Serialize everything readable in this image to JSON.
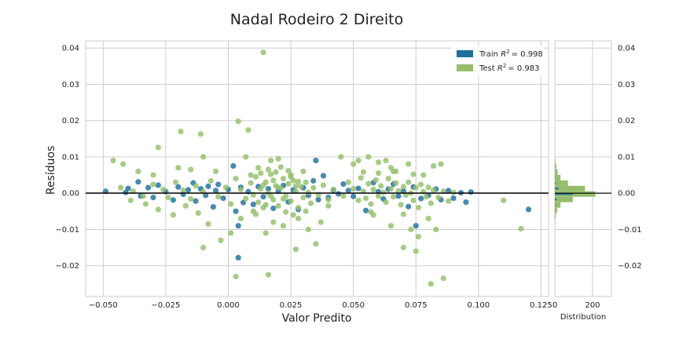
{
  "chart_data": {
    "type": "scatter",
    "title": "Nadal Rodeiro 2 Direito",
    "xlabel": "Valor Predito",
    "ylabel": "Resíduos",
    "xlim": [
      -0.057,
      0.128
    ],
    "ylim": [
      -0.0285,
      0.042
    ],
    "x_ticks": [
      -0.05,
      -0.025,
      0.0,
      0.025,
      0.05,
      0.075,
      0.1,
      0.125
    ],
    "x_tick_labels": [
      "−0.050",
      "−0.025",
      "0.000",
      "0.025",
      "0.050",
      "0.075",
      "0.100",
      "0.125"
    ],
    "y_ticks": [
      -0.02,
      -0.01,
      0.0,
      0.01,
      0.02,
      0.03,
      0.04
    ],
    "y_tick_labels": [
      "−0.02",
      "−0.01",
      "0.00",
      "0.01",
      "0.02",
      "0.03",
      "0.04"
    ],
    "grid": true,
    "legend_position": "top-right",
    "series": [
      {
        "name": "Train",
        "legend_prefix": "Train ",
        "legend_value": "= 0.998",
        "color": "#1f6f9c",
        "points": [
          [
            -0.049,
            0.0005
          ],
          [
            -0.041,
            0.0002
          ],
          [
            -0.04,
            0.0013
          ],
          [
            -0.036,
            0.0031
          ],
          [
            -0.035,
            -0.0008
          ],
          [
            -0.032,
            0.0015
          ],
          [
            -0.03,
            -0.0012
          ],
          [
            -0.028,
            0.0022
          ],
          [
            -0.025,
            0.0004
          ],
          [
            -0.022,
            -0.0019
          ],
          [
            -0.02,
            0.0017
          ],
          [
            -0.018,
            -0.0003
          ],
          [
            -0.016,
            0.0009
          ],
          [
            -0.014,
            0.0028
          ],
          [
            -0.013,
            -0.0022
          ],
          [
            -0.011,
            0.0012
          ],
          [
            -0.009,
            -0.0006
          ],
          [
            -0.008,
            0.0019
          ],
          [
            -0.006,
            -0.0038
          ],
          [
            -0.005,
            0.0007
          ],
          [
            -0.004,
            0.0024
          ],
          [
            -0.002,
            -0.0014
          ],
          [
            0.0,
            0.001
          ],
          [
            0.002,
            0.0075
          ],
          [
            0.003,
            -0.005
          ],
          [
            0.004,
            -0.009
          ],
          [
            0.005,
            0.0016
          ],
          [
            0.006,
            -0.0026
          ],
          [
            0.008,
            0.0004
          ],
          [
            0.01,
            -0.0031
          ],
          [
            0.012,
            0.0018
          ],
          [
            0.014,
            -0.001
          ],
          [
            0.016,
            0.0012
          ],
          [
            0.018,
            -0.0042
          ],
          [
            0.02,
            0.0006
          ],
          [
            0.022,
            0.0021
          ],
          [
            0.024,
            -0.0024
          ],
          [
            0.026,
            0.0009
          ],
          [
            0.028,
            -0.0045
          ],
          [
            0.03,
            0.0015
          ],
          [
            0.032,
            -0.0006
          ],
          [
            0.034,
            0.0034
          ],
          [
            0.035,
            0.009
          ],
          [
            0.036,
            -0.0018
          ],
          [
            0.038,
            0.0048
          ],
          [
            0.04,
            -0.0012
          ],
          [
            0.042,
            0.0008
          ],
          [
            0.044,
            -0.0002
          ],
          [
            0.046,
            0.0025
          ],
          [
            0.048,
            0.0007
          ],
          [
            0.05,
            -0.0009
          ],
          [
            0.052,
            0.0013
          ],
          [
            0.055,
            -0.0048
          ],
          [
            0.058,
            0.0029
          ],
          [
            0.06,
            0.0004
          ],
          [
            0.062,
            -0.0016
          ],
          [
            0.064,
            0.0011
          ],
          [
            0.066,
            0.0025
          ],
          [
            0.068,
            -0.0008
          ],
          [
            0.07,
            0.0006
          ],
          [
            0.072,
            -0.0037
          ],
          [
            0.074,
            0.0017
          ],
          [
            0.075,
            -0.009
          ],
          [
            0.077,
            -0.0015
          ],
          [
            0.08,
            -0.0006
          ],
          [
            0.083,
            0.0011
          ],
          [
            0.085,
            -0.0018
          ],
          [
            0.088,
            0.0007
          ],
          [
            0.09,
            -0.0014
          ],
          [
            0.093,
            0.0001
          ],
          [
            0.095,
            -0.0025
          ],
          [
            0.097,
            0.0003
          ],
          [
            0.12,
            -0.0045
          ],
          [
            0.004,
            -0.0178
          ]
        ]
      },
      {
        "name": "Test",
        "legend_prefix": "Test ",
        "legend_value": "= 0.983",
        "color": "#95be6c",
        "points": [
          [
            0.014,
            0.0388
          ],
          [
            0.004,
            0.0198
          ],
          [
            0.008,
            0.0174
          ],
          [
            -0.019,
            0.017
          ],
          [
            -0.011,
            0.0163
          ],
          [
            -0.028,
            0.0126
          ],
          [
            -0.046,
            0.009
          ],
          [
            -0.042,
            0.008
          ],
          [
            -0.036,
            0.006
          ],
          [
            -0.03,
            0.005
          ],
          [
            -0.02,
            0.007
          ],
          [
            -0.015,
            0.0065
          ],
          [
            -0.01,
            0.01
          ],
          [
            -0.005,
            0.006
          ],
          [
            0.007,
            0.01
          ],
          [
            0.012,
            0.007
          ],
          [
            0.017,
            0.009
          ],
          [
            0.02,
            0.0095
          ],
          [
            0.025,
            0.005
          ],
          [
            0.03,
            0.006
          ],
          [
            0.045,
            0.01
          ],
          [
            0.05,
            0.008
          ],
          [
            0.052,
            0.009
          ],
          [
            0.056,
            0.01
          ],
          [
            0.06,
            0.0085
          ],
          [
            0.063,
            0.009
          ],
          [
            0.065,
            0.007
          ],
          [
            0.067,
            0.006
          ],
          [
            0.072,
            0.008
          ],
          [
            0.082,
            0.0075
          ],
          [
            0.085,
            0.008
          ],
          [
            0.078,
            0.005
          ],
          [
            -0.039,
            -0.002
          ],
          [
            -0.033,
            -0.003
          ],
          [
            -0.028,
            -0.0045
          ],
          [
            -0.022,
            -0.006
          ],
          [
            -0.017,
            -0.0035
          ],
          [
            -0.012,
            -0.0055
          ],
          [
            -0.008,
            -0.0085
          ],
          [
            -0.01,
            -0.015
          ],
          [
            -0.003,
            -0.013
          ],
          [
            0.001,
            -0.011
          ],
          [
            0.003,
            -0.023
          ],
          [
            0.005,
            -0.007
          ],
          [
            0.01,
            -0.005
          ],
          [
            0.015,
            -0.011
          ],
          [
            0.016,
            -0.0225
          ],
          [
            0.018,
            -0.008
          ],
          [
            0.022,
            -0.009
          ],
          [
            0.027,
            -0.0155
          ],
          [
            0.028,
            -0.007
          ],
          [
            0.032,
            -0.01
          ],
          [
            0.035,
            -0.014
          ],
          [
            0.037,
            -0.008
          ],
          [
            0.04,
            -0.0035
          ],
          [
            0.058,
            -0.006
          ],
          [
            0.065,
            -0.009
          ],
          [
            0.07,
            -0.015
          ],
          [
            0.073,
            -0.01
          ],
          [
            0.076,
            -0.012
          ],
          [
            0.075,
            -0.016
          ],
          [
            0.08,
            -0.007
          ],
          [
            0.081,
            -0.025
          ],
          [
            0.086,
            -0.0235
          ],
          [
            0.083,
            -0.01
          ],
          [
            0.11,
            -0.002
          ],
          [
            0.117,
            -0.0098
          ],
          [
            -0.043,
            0.0015
          ],
          [
            -0.038,
            0.0005
          ],
          [
            -0.034,
            -0.0008
          ],
          [
            -0.03,
            0.0024
          ],
          [
            -0.026,
            0.001
          ],
          [
            -0.024,
            -0.0012
          ],
          [
            -0.021,
            0.003
          ],
          [
            -0.018,
            0.0008
          ],
          [
            -0.015,
            -0.0016
          ],
          [
            -0.013,
            0.002
          ],
          [
            -0.01,
            0.0004
          ],
          [
            -0.007,
            0.0034
          ],
          [
            -0.004,
            -0.001
          ],
          [
            -0.001,
            0.0016
          ],
          [
            0.001,
            -0.003
          ],
          [
            0.003,
            0.004
          ],
          [
            0.005,
            0.001
          ],
          [
            0.007,
            -0.0015
          ],
          [
            0.009,
            0.0028
          ],
          [
            0.01,
            -0.0005
          ],
          [
            0.011,
            0.0045
          ],
          [
            0.012,
            -0.0025
          ],
          [
            0.013,
            0.0012
          ],
          [
            0.014,
            -0.004
          ],
          [
            0.015,
            0.003
          ],
          [
            0.016,
            0.0
          ],
          [
            0.017,
            0.0052
          ],
          [
            0.018,
            -0.0018
          ],
          [
            0.019,
            0.002
          ],
          [
            0.02,
            -0.0035
          ],
          [
            0.021,
            0.0014
          ],
          [
            0.022,
            0.004
          ],
          [
            0.023,
            -0.0008
          ],
          [
            0.024,
            0.0026
          ],
          [
            0.025,
            -0.0022
          ],
          [
            0.026,
            0.0035
          ],
          [
            0.027,
            0.0005
          ],
          [
            0.028,
            -0.004
          ],
          [
            0.029,
            0.0018
          ],
          [
            0.03,
            -0.0012
          ],
          [
            0.031,
            0.003
          ],
          [
            0.032,
            0.0002
          ],
          [
            0.033,
            -0.0028
          ],
          [
            0.034,
            0.0015
          ],
          [
            0.036,
            -0.0005
          ],
          [
            0.038,
            0.0022
          ],
          [
            0.04,
            -0.0018
          ],
          [
            0.042,
            0.001
          ],
          [
            0.046,
            -0.0008
          ],
          [
            0.048,
            0.003
          ],
          [
            0.05,
            0.0012
          ],
          [
            0.052,
            -0.002
          ],
          [
            0.053,
            0.0042
          ],
          [
            0.054,
            0.0005
          ],
          [
            0.055,
            -0.0014
          ],
          [
            0.056,
            0.0026
          ],
          [
            0.057,
            -0.003
          ],
          [
            0.058,
            0.001
          ],
          [
            0.059,
            0.0036
          ],
          [
            0.06,
            -0.0008
          ],
          [
            0.061,
            0.002
          ],
          [
            0.062,
            0.0002
          ],
          [
            0.063,
            -0.0025
          ],
          [
            0.064,
            0.004
          ],
          [
            0.065,
            0.0012
          ],
          [
            0.066,
            -0.001
          ],
          [
            0.067,
            0.0028
          ],
          [
            0.068,
            0.0006
          ],
          [
            0.069,
            -0.0032
          ],
          [
            0.07,
            0.0018
          ],
          [
            0.071,
            -0.0005
          ],
          [
            0.072,
            0.003
          ],
          [
            0.073,
            0.0
          ],
          [
            0.074,
            -0.002
          ],
          [
            0.075,
            0.0015
          ],
          [
            0.076,
            -0.004
          ],
          [
            0.077,
            0.0024
          ],
          [
            0.078,
            0.0004
          ],
          [
            0.079,
            -0.001
          ],
          [
            0.08,
            0.0016
          ],
          [
            0.081,
            -0.0028
          ],
          [
            0.082,
            0.0008
          ],
          [
            0.084,
            -0.0012
          ],
          [
            0.086,
            0.0005
          ],
          [
            0.088,
            -0.0022
          ],
          [
            0.09,
            0.0002
          ],
          [
            0.016,
            0.0065
          ],
          [
            0.019,
            0.0058
          ],
          [
            0.021,
            0.0072
          ],
          [
            0.013,
            0.0055
          ],
          [
            0.024,
            0.0062
          ],
          [
            0.023,
            -0.0052
          ],
          [
            0.026,
            -0.006
          ],
          [
            0.011,
            -0.0058
          ],
          [
            0.031,
            -0.005
          ],
          [
            0.06,
            0.0055
          ],
          [
            0.066,
            0.006
          ],
          [
            0.07,
            -0.0058
          ],
          [
            0.054,
            0.0058
          ],
          [
            0.057,
            -0.0052
          ],
          [
            0.074,
            0.0052
          ],
          [
            0.009,
            0.005
          ],
          [
            0.018,
            0.0035
          ],
          [
            0.015,
            -0.0032
          ],
          [
            0.025,
            0.0045
          ],
          [
            0.028,
            0.0032
          ],
          [
            0.02,
            0.0015
          ],
          [
            0.017,
            -0.0008
          ],
          [
            0.014,
            0.0022
          ],
          [
            0.022,
            -0.0016
          ],
          [
            0.027,
            0.002
          ]
        ]
      }
    ],
    "distribution": {
      "xlabel": "Distribution",
      "x_ticks": [
        0,
        200
      ],
      "x_tick_labels": [
        "0",
        "200"
      ],
      "xlim": [
        0,
        300
      ],
      "bins": [
        {
          "lo": -0.0085,
          "hi": -0.007,
          "test": 2,
          "train": 0
        },
        {
          "lo": -0.007,
          "hi": -0.0055,
          "test": 5,
          "train": 0
        },
        {
          "lo": -0.0055,
          "hi": -0.004,
          "test": 12,
          "train": 1
        },
        {
          "lo": -0.004,
          "hi": -0.0025,
          "test": 30,
          "train": 3
        },
        {
          "lo": -0.0025,
          "hi": -0.001,
          "test": 95,
          "train": 10
        },
        {
          "lo": -0.001,
          "hi": 0.0005,
          "test": 215,
          "train": 95
        },
        {
          "lo": 0.0005,
          "hi": 0.002,
          "test": 160,
          "train": 20
        },
        {
          "lo": 0.002,
          "hi": 0.0035,
          "test": 70,
          "train": 4
        },
        {
          "lo": 0.0035,
          "hi": 0.005,
          "test": 30,
          "train": 1
        },
        {
          "lo": 0.005,
          "hi": 0.0065,
          "test": 15,
          "train": 0
        },
        {
          "lo": 0.0065,
          "hi": 0.008,
          "test": 8,
          "train": 0
        },
        {
          "lo": 0.008,
          "hi": 0.0095,
          "test": 3,
          "train": 0
        }
      ]
    }
  }
}
